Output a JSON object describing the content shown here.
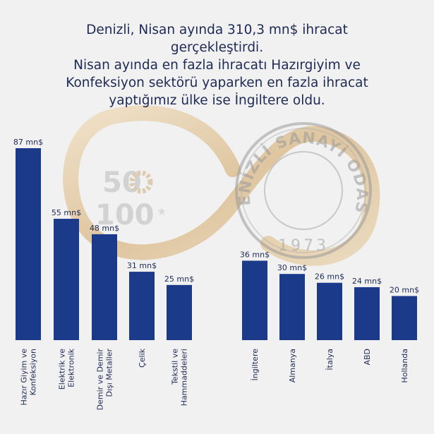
{
  "header": {
    "title_lines": [
      "Denizli, Nisan ayında 310,3 mn$ ihracat",
      "gerçekleştirdi.",
      "Nisan ayında en fazla ihracatı Hazırgiyim ve",
      "Konfeksiyon sektörü yaparken en fazla ihracat",
      "yaptığımız ülke ise İngiltere oldu."
    ]
  },
  "watermark": {
    "logo_top": "50",
    "logo_bottom": "100",
    "seal_text": "DENİZLİ SANAYİ ODASI",
    "seal_year": "1973"
  },
  "colors": {
    "bar": "#1c3a8a",
    "text": "#1e2a55",
    "background": "#f1f1f1",
    "watermark_gold": "#d8b98a"
  },
  "chart_data": [
    {
      "type": "bar",
      "categories": [
        [
          "Hazır Giyim ve",
          "Konfeksiyon"
        ],
        [
          "Elektrik ve",
          "Elektronik"
        ],
        [
          "Demir ve Demir",
          "Dışı Metaller"
        ],
        [
          "Çelik"
        ],
        [
          "Tekstil ve",
          "Hammaddeleri"
        ]
      ],
      "values": [
        87,
        55,
        48,
        31,
        25
      ],
      "value_labels": [
        "87 mn$",
        "55 mn$",
        "48 mn$",
        "31 mn$",
        "25 mn$"
      ],
      "unit": "mn$",
      "ylim": [
        0,
        90
      ],
      "grid": false
    },
    {
      "type": "bar",
      "categories": [
        [
          "İngiltere"
        ],
        [
          "Almanya"
        ],
        [
          "İtalya"
        ],
        [
          "ABD"
        ],
        [
          "Hollanda"
        ]
      ],
      "values": [
        36,
        30,
        26,
        24,
        20
      ],
      "value_labels": [
        "36 mn$",
        "30 mn$",
        "26 mn$",
        "24 mn$",
        "20 mn$"
      ],
      "unit": "mn$",
      "ylim": [
        0,
        90
      ],
      "grid": false
    }
  ]
}
